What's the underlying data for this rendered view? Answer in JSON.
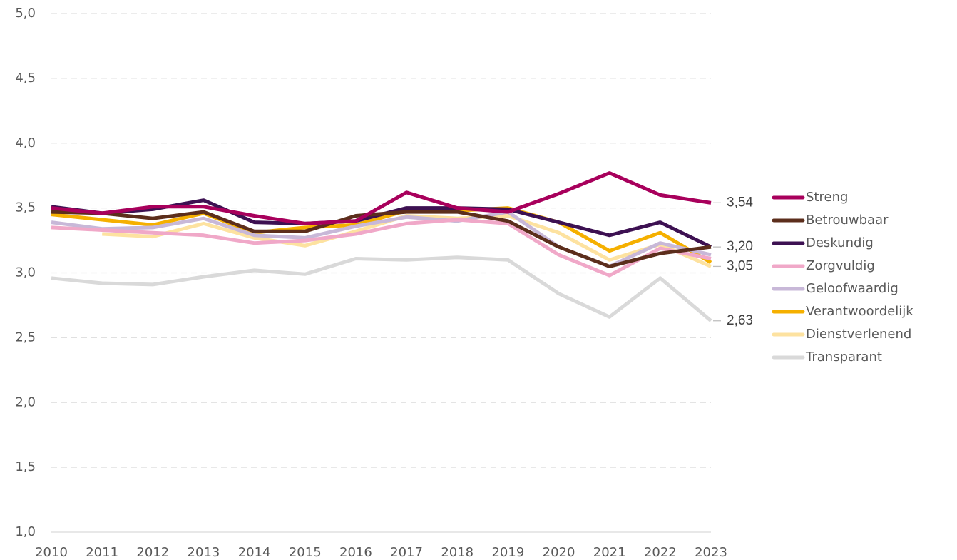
{
  "chart_data": {
    "type": "line",
    "categories": [
      "2010",
      "2011",
      "2012",
      "2013",
      "2014",
      "2015",
      "2016",
      "2017",
      "2018",
      "2019",
      "2020",
      "2021",
      "2022",
      "2023"
    ],
    "series": [
      {
        "name": "Streng",
        "color": "#a8005c",
        "values": [
          3.5,
          3.46,
          3.51,
          3.51,
          3.44,
          3.38,
          3.4,
          3.62,
          3.5,
          3.47,
          3.61,
          3.77,
          3.6,
          3.54
        ],
        "value_labels": [
          null,
          null,
          null,
          null,
          null,
          null,
          null,
          null,
          null,
          null,
          null,
          null,
          null,
          "3,54"
        ]
      },
      {
        "name": "Betrouwbaar",
        "color": "#5c2e1c",
        "values": [
          3.47,
          3.46,
          3.42,
          3.47,
          3.32,
          3.32,
          3.44,
          3.47,
          3.47,
          3.4,
          3.2,
          3.05,
          3.15,
          3.2
        ]
      },
      {
        "name": "Deskundig",
        "color": "#3d1152",
        "values": [
          3.51,
          3.46,
          3.49,
          3.56,
          3.39,
          3.38,
          3.4,
          3.5,
          3.5,
          3.49,
          3.39,
          3.29,
          3.39,
          3.2
        ],
        "value_labels": [
          null,
          null,
          null,
          null,
          null,
          null,
          null,
          null,
          null,
          null,
          null,
          null,
          null,
          "3,20"
        ]
      },
      {
        "name": "Zorgvuldig",
        "color": "#f0a8c8",
        "values": [
          3.35,
          3.33,
          3.31,
          3.29,
          3.23,
          3.25,
          3.3,
          3.38,
          3.41,
          3.38,
          3.14,
          2.98,
          3.19,
          3.11
        ]
      },
      {
        "name": "Geloofwaardig",
        "color": "#c8b8d8",
        "values": [
          3.39,
          3.34,
          3.35,
          3.42,
          3.29,
          3.27,
          3.36,
          3.43,
          3.4,
          3.47,
          3.2,
          3.05,
          3.23,
          3.14
        ]
      },
      {
        "name": "Verantwoordelijk",
        "color": "#f5b000",
        "values": [
          3.45,
          3.41,
          3.37,
          3.46,
          3.31,
          3.35,
          3.37,
          3.48,
          3.48,
          3.5,
          3.39,
          3.17,
          3.31,
          3.08
        ]
      },
      {
        "name": "Dienstverlenend",
        "color": "#fde2a0",
        "values": [
          null,
          3.3,
          3.28,
          3.38,
          3.27,
          3.21,
          3.32,
          3.44,
          3.42,
          3.44,
          3.31,
          3.1,
          3.22,
          3.05
        ],
        "value_labels": [
          null,
          null,
          null,
          null,
          null,
          null,
          null,
          null,
          null,
          null,
          null,
          null,
          null,
          "3,05"
        ]
      },
      {
        "name": "Transparant",
        "color": "#d9d9d9",
        "values": [
          2.96,
          2.92,
          2.91,
          2.97,
          3.02,
          2.99,
          3.11,
          3.1,
          3.12,
          3.1,
          2.84,
          2.66,
          2.96,
          2.63
        ],
        "value_labels": [
          null,
          null,
          null,
          null,
          null,
          null,
          null,
          null,
          null,
          null,
          null,
          null,
          null,
          "2,63"
        ]
      }
    ],
    "ylim": [
      1,
      5
    ],
    "yticks": [
      {
        "value": 1,
        "label": "1,0"
      },
      {
        "value": 1.5,
        "label": "1,5"
      },
      {
        "value": 2,
        "label": "2,0"
      },
      {
        "value": 2.5,
        "label": "2,5"
      },
      {
        "value": 3,
        "label": "3,0"
      },
      {
        "value": 3.5,
        "label": "3,5"
      },
      {
        "value": 4,
        "label": "4,0"
      },
      {
        "value": 4.5,
        "label": "4,5"
      },
      {
        "value": 5,
        "label": "5,0"
      }
    ],
    "grid": true,
    "legend": "right"
  }
}
